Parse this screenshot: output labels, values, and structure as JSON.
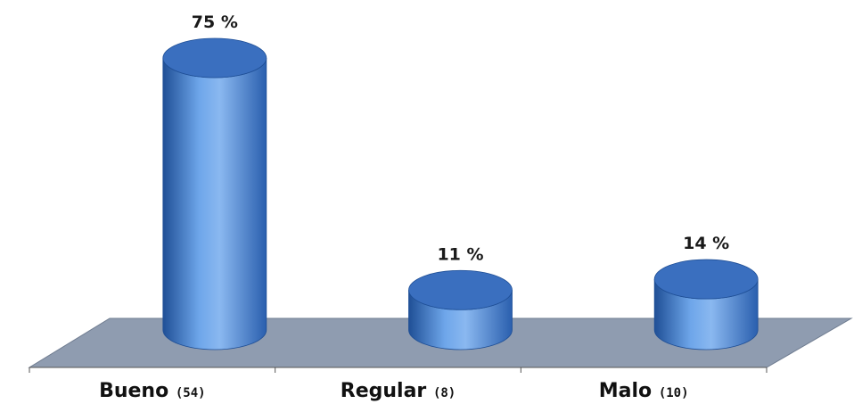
{
  "chart_data": {
    "type": "bar",
    "style": "3d-cylinder",
    "categories": [
      "Bueno",
      "Regular",
      "Malo"
    ],
    "counts": [
      "(54)",
      "(8)",
      "(10)"
    ],
    "values": [
      75,
      11,
      14
    ],
    "value_labels": [
      "75 %",
      "11 %",
      "14 %"
    ],
    "ylim": [
      0,
      75
    ],
    "grid": false,
    "legend": "none",
    "colors": {
      "bar_light": "#8ab8f0",
      "bar_mid": "#4a86d6",
      "bar_dark": "#1f4f96",
      "bar_top": "#3a6fbf",
      "floor": "#8f9cb0",
      "floor_edge": "#6f7c90",
      "axis": "#555555"
    }
  }
}
